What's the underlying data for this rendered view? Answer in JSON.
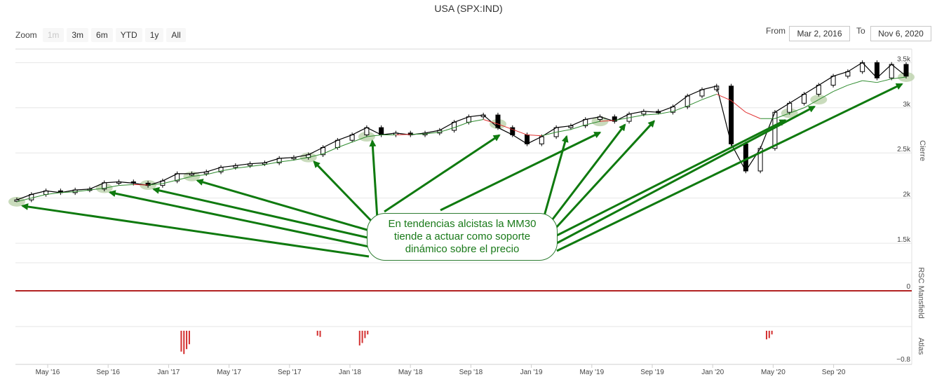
{
  "title": "USA (SPX:IND)",
  "zoom": {
    "label": "Zoom",
    "buttons": [
      {
        "label": "1m",
        "enabled": false
      },
      {
        "label": "3m",
        "enabled": true
      },
      {
        "label": "6m",
        "enabled": true
      },
      {
        "label": "YTD",
        "enabled": true
      },
      {
        "label": "1y",
        "enabled": true
      },
      {
        "label": "All",
        "enabled": true
      }
    ]
  },
  "range": {
    "from_label": "From",
    "from_value": "Mar 2, 2016",
    "to_label": "To",
    "to_value": "Nov 6, 2020"
  },
  "annotation": "En tendencias alcistas la MM30 tiende a actuar como soporte dinámico sobre el precio",
  "colors": {
    "price": "#000000",
    "ma": "#2e8b2e",
    "ma_below": "#e03030",
    "arrow": "#0f7a0f",
    "highlight": "#b7cfa6",
    "rsc_line": "#b22222",
    "atlas_bars": "#d32f2f"
  },
  "chart_data": {
    "type": "line",
    "series": [
      {
        "values": [
          1980,
          2040,
          2080,
          2060,
          2090,
          2100,
          2170,
          2180,
          2165,
          2140,
          2190,
          2270,
          2270,
          2290,
          2340,
          2360,
          2380,
          2390,
          2440,
          2450,
          2480,
          2560,
          2640,
          2700,
          2780,
          2700,
          2720,
          2700,
          2720,
          2750,
          2840,
          2900,
          2920,
          2780,
          2700,
          2600,
          2680,
          2780,
          2800,
          2870,
          2900,
          2850,
          2930,
          2960,
          2950,
          3010,
          3130,
          3200,
          3240,
          2600,
          2300,
          2550,
          2950,
          3050,
          3150,
          3250,
          3350,
          3400,
          3500,
          3330,
          3480,
          3350
        ]
      },
      {
        "values": [
          1960,
          2000,
          2040,
          2060,
          2070,
          2090,
          2110,
          2140,
          2150,
          2145,
          2160,
          2200,
          2240,
          2260,
          2300,
          2330,
          2350,
          2370,
          2400,
          2420,
          2450,
          2490,
          2560,
          2620,
          2680,
          2700,
          2700,
          2705,
          2710,
          2730,
          2780,
          2840,
          2870,
          2820,
          2760,
          2700,
          2690,
          2730,
          2760,
          2810,
          2850,
          2860,
          2890,
          2920,
          2930,
          2960,
          3020,
          3090,
          3150,
          3080,
          2950,
          2880,
          2880,
          2940,
          3000,
          3090,
          3180,
          3250,
          3300,
          3280,
          3320,
          3340
        ]
      }
    ],
    "x_tick_labels": [
      "May '16",
      "Sep '16",
      "Jan '17",
      "May '17",
      "Sep '17",
      "Jan '18",
      "May '18",
      "Sep '18",
      "Jan '19",
      "May '19",
      "Sep '19",
      "Jan '20",
      "May '20",
      "Sep '20"
    ],
    "y_tick_labels": [
      "3.5k",
      "3k",
      "2.5k",
      "2k",
      "1.5k"
    ],
    "y_ticks": [
      3500,
      3000,
      2500,
      2000,
      1500
    ],
    "ylim": [
      1400,
      3650
    ],
    "ylabel": "Cierre",
    "panels": [
      {
        "ylabel": "RSC Mansfield",
        "tick_labels": [
          "0"
        ],
        "line_value": 0
      },
      {
        "ylabel": "Atlas",
        "tick_labels": [
          "−0.8"
        ],
        "bars": [
          {
            "x": 0.185,
            "v": -0.85
          },
          {
            "x": 0.188,
            "v": -0.95
          },
          {
            "x": 0.191,
            "v": -0.75
          },
          {
            "x": 0.194,
            "v": -0.55
          },
          {
            "x": 0.337,
            "v": -0.2
          },
          {
            "x": 0.34,
            "v": -0.25
          },
          {
            "x": 0.384,
            "v": -0.6
          },
          {
            "x": 0.387,
            "v": -0.5
          },
          {
            "x": 0.39,
            "v": -0.3
          },
          {
            "x": 0.393,
            "v": -0.15
          },
          {
            "x": 0.838,
            "v": -0.35
          },
          {
            "x": 0.841,
            "v": -0.3
          },
          {
            "x": 0.844,
            "v": -0.15
          }
        ]
      }
    ]
  }
}
